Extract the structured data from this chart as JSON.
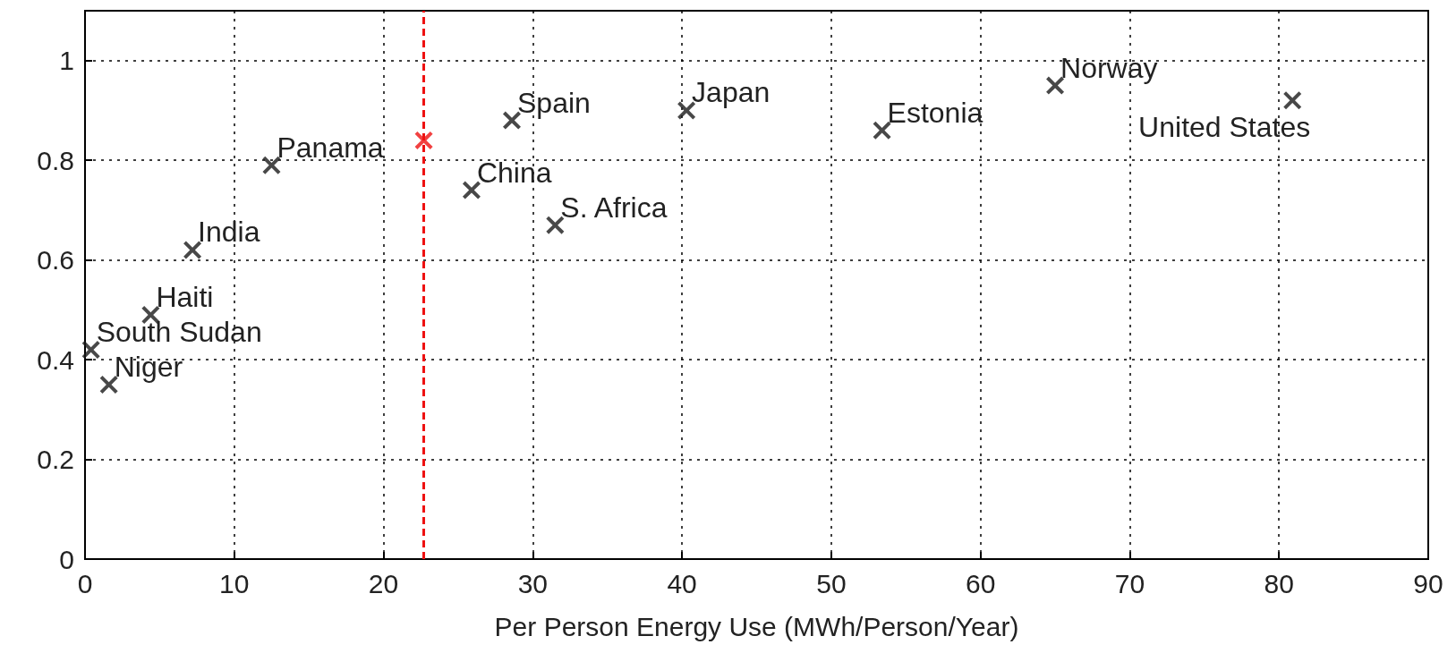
{
  "chart_data": {
    "type": "scatter",
    "xlabel": "Per Person Energy Use (MWh/Person/Year)",
    "series": [
      {
        "color": "#1a1a1a",
        "x": [
          0.4,
          1.6,
          4.4,
          7.2,
          12.5,
          25.9,
          28.6,
          31.5,
          40.3,
          53.4,
          65.0,
          80.9
        ],
        "values": [
          0.42,
          0.35,
          0.49,
          0.62,
          0.79,
          0.74,
          0.88,
          0.67,
          0.9,
          0.86,
          0.95,
          0.92
        ]
      },
      {
        "color": "#ee1111",
        "x": [
          22.7
        ],
        "values": [
          0.84
        ]
      }
    ],
    "annotations": [
      {
        "text": "South Sudan",
        "x": 0.4,
        "y": 0.42
      },
      {
        "text": "Niger",
        "x": 1.6,
        "y": 0.35
      },
      {
        "text": "Haiti",
        "x": 4.4,
        "y": 0.49
      },
      {
        "text": "India",
        "x": 7.2,
        "y": 0.62
      },
      {
        "text": "Panama",
        "x": 12.5,
        "y": 0.79
      },
      {
        "text": "China",
        "x": 25.9,
        "y": 0.74
      },
      {
        "text": "Spain",
        "x": 28.6,
        "y": 0.88
      },
      {
        "text": "S. Africa",
        "x": 31.5,
        "y": 0.67
      },
      {
        "text": "Japan",
        "x": 40.3,
        "y": 0.9
      },
      {
        "text": "Estonia",
        "x": 53.4,
        "y": 0.86
      },
      {
        "text": "Norway",
        "x": 65.0,
        "y": 0.95
      },
      {
        "text": "United States",
        "x": 80.9,
        "y": 0.92
      }
    ],
    "ref_lines": [
      {
        "axis": "x",
        "value": 22.7,
        "color": "#ee1111",
        "line_style": "dashed"
      }
    ],
    "xlim": [
      0,
      90
    ],
    "xticks": [
      0,
      10,
      20,
      30,
      40,
      50,
      60,
      70,
      80,
      90
    ],
    "ylim": [
      0,
      1.1
    ],
    "yticks": [
      0,
      0.2,
      0.4,
      0.6,
      0.8,
      1
    ],
    "grid": true,
    "marker": "cross"
  }
}
